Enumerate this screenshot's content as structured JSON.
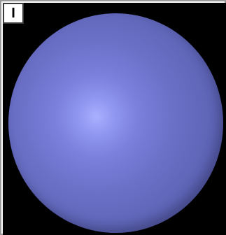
{
  "panel": {
    "label": "I"
  },
  "sphere": {
    "color": "#6d72c9",
    "highlight_color": "#aab0ff",
    "background_color": "#000000"
  }
}
